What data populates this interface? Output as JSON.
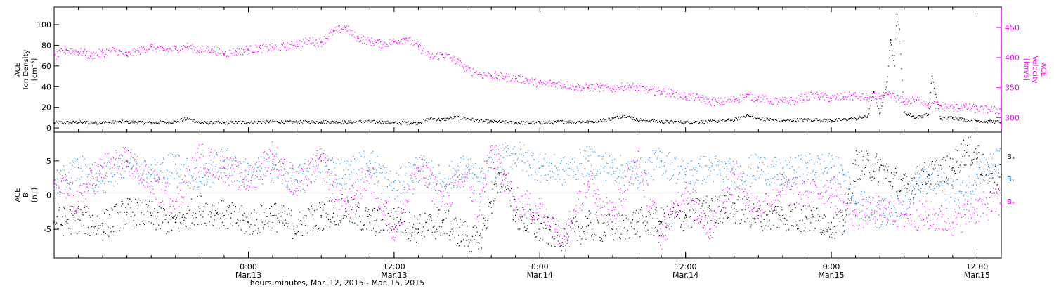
{
  "chart_data": [
    {
      "type": "scatter",
      "panel": "plasma",
      "ylabel_left": [
        "ACE",
        "Ion Density",
        "[cm⁻³]"
      ],
      "ylabel_right": [
        "ACE",
        "Velocity",
        "[km/s]"
      ],
      "yticks_left": [
        0,
        20,
        40,
        60,
        80,
        100
      ],
      "yticks_right": [
        300,
        350,
        400,
        450
      ],
      "ylim_left": [
        -4,
        117
      ],
      "ylim_right": [
        276,
        484
      ],
      "grid": false,
      "colors": {
        "density": "#000000",
        "velocity": "#ff00ff",
        "axis_right": "#ff00ff"
      },
      "series": [
        {
          "key": "density",
          "axis": "left",
          "points": [
            [
              0,
              5
            ],
            [
              2,
              5.5
            ],
            [
              4,
              5
            ],
            [
              6,
              6
            ],
            [
              8,
              5
            ],
            [
              10,
              6
            ],
            [
              11,
              9
            ],
            [
              12,
              5
            ],
            [
              14,
              5
            ],
            [
              16,
              5.5
            ],
            [
              18,
              6
            ],
            [
              20,
              5.5
            ],
            [
              22,
              6
            ],
            [
              24,
              5.5
            ],
            [
              26,
              6
            ],
            [
              28,
              5
            ],
            [
              30,
              5
            ],
            [
              31,
              9
            ],
            [
              32,
              8
            ],
            [
              33,
              10
            ],
            [
              34,
              9
            ],
            [
              35,
              7
            ],
            [
              36,
              6
            ],
            [
              38,
              5
            ],
            [
              40,
              5
            ],
            [
              42,
              6
            ],
            [
              44,
              6
            ],
            [
              46,
              9
            ],
            [
              47,
              12
            ],
            [
              48,
              8
            ],
            [
              50,
              6
            ],
            [
              52,
              5.5
            ],
            [
              54,
              6
            ],
            [
              56,
              8
            ],
            [
              57,
              12
            ],
            [
              58,
              9
            ],
            [
              60,
              7
            ],
            [
              62,
              8
            ],
            [
              64,
              7
            ],
            [
              66,
              9
            ],
            [
              67,
              11
            ],
            [
              67.5,
              35
            ],
            [
              68,
              14
            ],
            [
              68.6,
              45
            ],
            [
              68.9,
              85
            ],
            [
              69.2,
              60
            ],
            [
              69.4,
              110
            ],
            [
              69.6,
              95
            ],
            [
              70,
              15
            ],
            [
              71,
              10
            ],
            [
              72,
              13
            ],
            [
              72.3,
              50
            ],
            [
              73,
              9
            ],
            [
              74,
              10
            ],
            [
              75,
              8
            ],
            [
              76,
              7
            ],
            [
              77,
              6
            ],
            [
              78,
              6
            ]
          ]
        },
        {
          "key": "velocity",
          "axis": "right",
          "points": [
            [
              0,
              400
            ],
            [
              1,
              413
            ],
            [
              2,
              410
            ],
            [
              3,
              403
            ],
            [
              4,
              408
            ],
            [
              5,
              412
            ],
            [
              6,
              404
            ],
            [
              7,
              411
            ],
            [
              8,
              418
            ],
            [
              9,
              412
            ],
            [
              10,
              414
            ],
            [
              11,
              418
            ],
            [
              12,
              412
            ],
            [
              13,
              414
            ],
            [
              14,
              406
            ],
            [
              15,
              410
            ],
            [
              16,
              413
            ],
            [
              17,
              415
            ],
            [
              18,
              416
            ],
            [
              19,
              418
            ],
            [
              20,
              422
            ],
            [
              21,
              428
            ],
            [
              22,
              425
            ],
            [
              23,
              443
            ],
            [
              24,
              450
            ],
            [
              25,
              432
            ],
            [
              26,
              427
            ],
            [
              27,
              422
            ],
            [
              28,
              426
            ],
            [
              29,
              432
            ],
            [
              30,
              418
            ],
            [
              31,
              400
            ],
            [
              32,
              405
            ],
            [
              33,
              396
            ],
            [
              34,
              380
            ],
            [
              35,
              372
            ],
            [
              36,
              370
            ],
            [
              37,
              368
            ],
            [
              38,
              365
            ],
            [
              39,
              363
            ],
            [
              40,
              356
            ],
            [
              41,
              357
            ],
            [
              42,
              355
            ],
            [
              43,
              351
            ],
            [
              44,
              350
            ],
            [
              45,
              350
            ],
            [
              46,
              348
            ],
            [
              47,
              352
            ],
            [
              48,
              351
            ],
            [
              49,
              345
            ],
            [
              50,
              343
            ],
            [
              51,
              340
            ],
            [
              52,
              335
            ],
            [
              53,
              333
            ],
            [
              54,
              327
            ],
            [
              55,
              326
            ],
            [
              56,
              330
            ],
            [
              57,
              335
            ],
            [
              58,
              333
            ],
            [
              59,
              328
            ],
            [
              60,
              327
            ],
            [
              61,
              328
            ],
            [
              62,
              335
            ],
            [
              63,
              336
            ],
            [
              64,
              332
            ],
            [
              65,
              335
            ],
            [
              66,
              336
            ],
            [
              67,
              333
            ],
            [
              68,
              335
            ],
            [
              69,
              336
            ],
            [
              70,
              327
            ],
            [
              71,
              330
            ],
            [
              72,
              323
            ],
            [
              73,
              320
            ],
            [
              74,
              316
            ],
            [
              75,
              318
            ],
            [
              76,
              314
            ],
            [
              77,
              313
            ],
            [
              78,
              312
            ]
          ]
        }
      ]
    },
    {
      "type": "scatter",
      "panel": "magnetic",
      "ylabel_left": [
        "ACE",
        "B",
        "[nT]"
      ],
      "yticks_left": [
        -5,
        0,
        5
      ],
      "ylim_left": [
        -9.2,
        9.2
      ],
      "zero_line": true,
      "grid": false,
      "legend": {
        "position": "right",
        "labels": [
          "Bₓ",
          "Bᵧ",
          "Bₔ"
        ]
      },
      "colors": {
        "bx": "#000000",
        "by": "#1a8ff0",
        "bz": "#ff00ff"
      },
      "series": [
        {
          "key": "bx",
          "points": [
            [
              0,
              -4
            ],
            [
              2,
              -3.5
            ],
            [
              4,
              -4.5
            ],
            [
              6,
              -2.5
            ],
            [
              8,
              -3
            ],
            [
              10,
              -4
            ],
            [
              12,
              -2
            ],
            [
              14,
              -3
            ],
            [
              16,
              -4
            ],
            [
              18,
              -3
            ],
            [
              20,
              -4.5
            ],
            [
              22,
              -3
            ],
            [
              24,
              -2
            ],
            [
              26,
              -4
            ],
            [
              28,
              -3.5
            ],
            [
              30,
              -5
            ],
            [
              32,
              -4
            ],
            [
              34,
              -6
            ],
            [
              35,
              -7
            ],
            [
              36,
              -1
            ],
            [
              37,
              3
            ],
            [
              38,
              -3
            ],
            [
              40,
              -5
            ],
            [
              42,
              -6
            ],
            [
              44,
              -4.5
            ],
            [
              46,
              -5
            ],
            [
              48,
              -4
            ],
            [
              50,
              -4
            ],
            [
              52,
              -3
            ],
            [
              54,
              -2
            ],
            [
              56,
              -2
            ],
            [
              58,
              -3
            ],
            [
              60,
              -3
            ],
            [
              62,
              -3.5
            ],
            [
              64,
              -4
            ],
            [
              65,
              -4.5
            ],
            [
              66,
              4.5
            ],
            [
              68,
              4
            ],
            [
              70,
              1
            ],
            [
              72,
              3
            ],
            [
              74,
              4
            ],
            [
              75,
              6.5
            ],
            [
              76,
              6
            ],
            [
              77,
              2
            ],
            [
              78,
              3
            ]
          ]
        },
        {
          "key": "by",
          "points": [
            [
              0,
              1
            ],
            [
              2,
              4
            ],
            [
              4,
              2
            ],
            [
              6,
              5
            ],
            [
              8,
              3
            ],
            [
              10,
              4.5
            ],
            [
              12,
              2
            ],
            [
              14,
              5
            ],
            [
              16,
              3
            ],
            [
              18,
              4
            ],
            [
              20,
              2
            ],
            [
              22,
              5
            ],
            [
              24,
              3
            ],
            [
              26,
              5
            ],
            [
              28,
              1
            ],
            [
              30,
              4
            ],
            [
              32,
              2
            ],
            [
              34,
              4
            ],
            [
              35,
              2
            ],
            [
              36,
              4
            ],
            [
              37,
              5.5
            ],
            [
              38,
              6
            ],
            [
              40,
              4
            ],
            [
              42,
              3.5
            ],
            [
              44,
              5
            ],
            [
              46,
              4
            ],
            [
              48,
              3
            ],
            [
              50,
              5
            ],
            [
              52,
              3
            ],
            [
              54,
              4
            ],
            [
              56,
              3
            ],
            [
              58,
              4
            ],
            [
              60,
              3
            ],
            [
              62,
              4
            ],
            [
              64,
              4
            ],
            [
              65,
              3
            ],
            [
              66,
              -1
            ],
            [
              68,
              -3
            ],
            [
              70,
              -1
            ],
            [
              71,
              2
            ],
            [
              72,
              2
            ],
            [
              74,
              1
            ],
            [
              75,
              0
            ],
            [
              76,
              3
            ],
            [
              77,
              4
            ],
            [
              78,
              5
            ]
          ]
        },
        {
          "key": "bz",
          "points": [
            [
              0,
              2
            ],
            [
              2,
              -1
            ],
            [
              4,
              4
            ],
            [
              6,
              5
            ],
            [
              8,
              2
            ],
            [
              10,
              -1
            ],
            [
              12,
              5.5
            ],
            [
              14,
              4
            ],
            [
              16,
              2
            ],
            [
              18,
              6
            ],
            [
              20,
              1
            ],
            [
              22,
              5
            ],
            [
              24,
              -2
            ],
            [
              26,
              3
            ],
            [
              28,
              -5
            ],
            [
              30,
              4
            ],
            [
              32,
              -1
            ],
            [
              34,
              3
            ],
            [
              35,
              -3
            ],
            [
              36,
              6.5
            ],
            [
              37,
              3
            ],
            [
              38,
              -1
            ],
            [
              40,
              -2
            ],
            [
              42,
              -6
            ],
            [
              44,
              2
            ],
            [
              46,
              -3
            ],
            [
              48,
              5
            ],
            [
              50,
              -6
            ],
            [
              52,
              1
            ],
            [
              54,
              -5
            ],
            [
              56,
              3
            ],
            [
              58,
              -2
            ],
            [
              60,
              1
            ],
            [
              62,
              0
            ],
            [
              64,
              1
            ],
            [
              66,
              -3
            ],
            [
              68,
              -2
            ],
            [
              70,
              -3
            ],
            [
              72,
              -3
            ],
            [
              74,
              -4
            ],
            [
              76,
              -2
            ],
            [
              78,
              -1
            ]
          ]
        }
      ]
    }
  ],
  "x_axis": {
    "ticks": [
      {
        "hour": 16,
        "time": "0:00",
        "date": "Mar.13"
      },
      {
        "hour": 28,
        "time": "12:00",
        "date": "Mar.13"
      },
      {
        "hour": 40,
        "time": "0:00",
        "date": "Mar.14"
      },
      {
        "hour": 52,
        "time": "12:00",
        "date": "Mar.14"
      },
      {
        "hour": 64,
        "time": "0:00",
        "date": "Mar.15"
      },
      {
        "hour": 76,
        "time": "12:00",
        "date": "Mar.15"
      }
    ],
    "label": "hours:minutes, Mar. 12, 2015 - Mar. 15, 2015",
    "xlim_hours": [
      0,
      78
    ]
  }
}
